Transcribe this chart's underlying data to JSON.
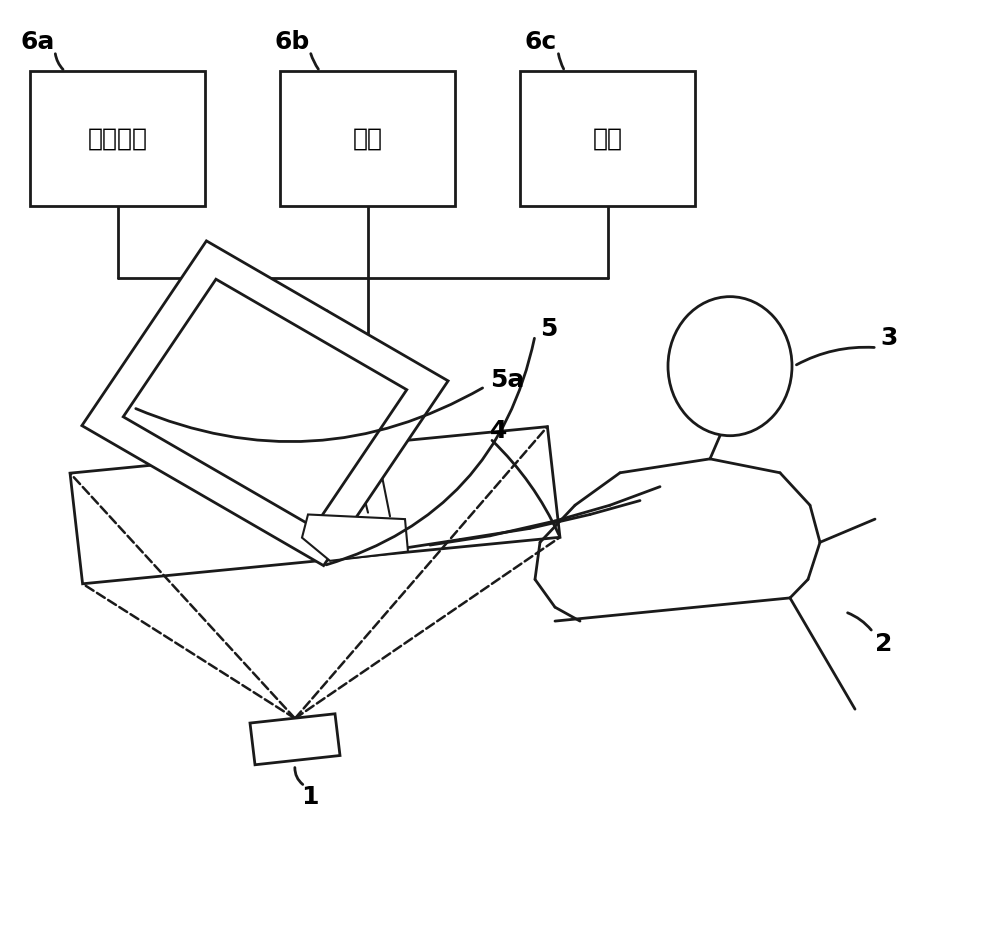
{
  "bg_color": "#ffffff",
  "line_color": "#1a1a1a",
  "lw": 2.0,
  "lw_thin": 1.5,
  "box_6a_label": "地图引导",
  "box_6b_label": "音频",
  "box_6c_label": "空调",
  "ref_6a": "6a",
  "ref_6b": "6b",
  "ref_6c": "6c",
  "ref_1": "1",
  "ref_2": "2",
  "ref_3": "3",
  "ref_4": "4",
  "ref_5": "5",
  "ref_5a": "5a",
  "chinese_fontsize": 18,
  "ref_fontsize": 18,
  "font_color": "#000000",
  "fig_w": 10.0,
  "fig_h": 9.27,
  "dpi": 100
}
